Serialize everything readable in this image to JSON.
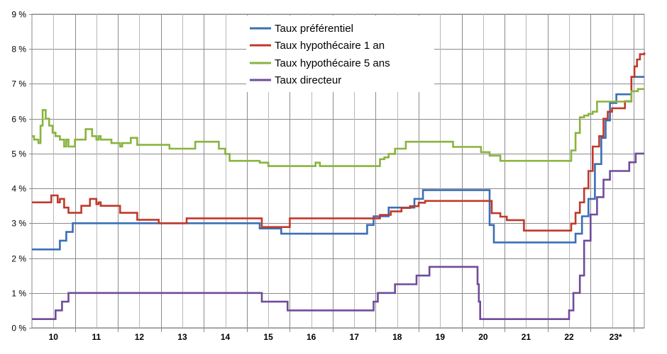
{
  "chart_data": {
    "type": "line",
    "title": "",
    "xlabel": "",
    "ylabel": "",
    "ylim": [
      0,
      9
    ],
    "y_ticks": [
      0,
      1,
      2,
      3,
      4,
      5,
      6,
      7,
      8,
      9
    ],
    "y_tick_labels": [
      "0 %",
      "1 %",
      "2 %",
      "3 %",
      "4 %",
      "5 %",
      "6 %",
      "7 %",
      "8 %",
      "9 %"
    ],
    "xlim": [
      2009.5,
      2023.75
    ],
    "x_tick_labels": [
      "10",
      "11",
      "12",
      "13",
      "14",
      "15",
      "16",
      "17",
      "18",
      "19",
      "20",
      "21",
      "22",
      "23*"
    ],
    "grid": true,
    "legend_position": "top-center",
    "series": [
      {
        "name": "Taux préférentiel",
        "color": "#3a6fb5",
        "steps": [
          [
            2009.5,
            2.25
          ],
          [
            2010.15,
            2.5
          ],
          [
            2010.3,
            2.75
          ],
          [
            2010.45,
            3.0
          ],
          [
            2014.8,
            2.85
          ],
          [
            2015.3,
            2.7
          ],
          [
            2017.3,
            2.95
          ],
          [
            2017.45,
            3.2
          ],
          [
            2017.7,
            3.2
          ],
          [
            2017.8,
            3.45
          ],
          [
            2018.4,
            3.7
          ],
          [
            2018.6,
            3.95
          ],
          [
            2019.8,
            3.95
          ],
          [
            2020.15,
            2.95
          ],
          [
            2020.25,
            2.45
          ],
          [
            2021.8,
            2.45
          ],
          [
            2022.15,
            2.7
          ],
          [
            2022.3,
            3.2
          ],
          [
            2022.45,
            3.7
          ],
          [
            2022.6,
            4.7
          ],
          [
            2022.75,
            5.45
          ],
          [
            2022.85,
            5.95
          ],
          [
            2022.95,
            6.45
          ],
          [
            2023.1,
            6.7
          ],
          [
            2023.45,
            7.2
          ],
          [
            2023.75,
            7.2
          ]
        ]
      },
      {
        "name": "Taux hypothécaire 1 an",
        "color": "#c0392b",
        "steps": [
          [
            2009.5,
            3.6
          ],
          [
            2009.85,
            3.6
          ],
          [
            2009.95,
            3.8
          ],
          [
            2010.1,
            3.6
          ],
          [
            2010.15,
            3.7
          ],
          [
            2010.25,
            3.45
          ],
          [
            2010.35,
            3.3
          ],
          [
            2010.55,
            3.3
          ],
          [
            2010.65,
            3.5
          ],
          [
            2010.85,
            3.7
          ],
          [
            2011.0,
            3.55
          ],
          [
            2011.05,
            3.6
          ],
          [
            2011.1,
            3.5
          ],
          [
            2011.5,
            3.5
          ],
          [
            2011.55,
            3.3
          ],
          [
            2011.8,
            3.3
          ],
          [
            2011.95,
            3.1
          ],
          [
            2012.35,
            3.1
          ],
          [
            2012.45,
            3.0
          ],
          [
            2012.95,
            3.0
          ],
          [
            2013.1,
            3.14
          ],
          [
            2014.75,
            3.14
          ],
          [
            2014.85,
            2.89
          ],
          [
            2015.35,
            2.89
          ],
          [
            2015.5,
            3.14
          ],
          [
            2017.5,
            3.14
          ],
          [
            2017.6,
            3.24
          ],
          [
            2017.85,
            3.34
          ],
          [
            2018.1,
            3.44
          ],
          [
            2018.3,
            3.49
          ],
          [
            2018.5,
            3.59
          ],
          [
            2018.65,
            3.64
          ],
          [
            2019.85,
            3.64
          ],
          [
            2020.2,
            3.29
          ],
          [
            2020.4,
            3.19
          ],
          [
            2020.55,
            3.09
          ],
          [
            2020.8,
            3.09
          ],
          [
            2020.95,
            2.79
          ],
          [
            2021.9,
            2.79
          ],
          [
            2022.05,
            2.99
          ],
          [
            2022.15,
            3.3
          ],
          [
            2022.25,
            3.6
          ],
          [
            2022.35,
            4.0
          ],
          [
            2022.45,
            4.5
          ],
          [
            2022.55,
            5.2
          ],
          [
            2022.7,
            5.5
          ],
          [
            2022.8,
            6.0
          ],
          [
            2022.9,
            6.2
          ],
          [
            2023.0,
            6.3
          ],
          [
            2023.2,
            6.3
          ],
          [
            2023.3,
            6.5
          ],
          [
            2023.45,
            7.2
          ],
          [
            2023.52,
            7.5
          ],
          [
            2023.58,
            7.7
          ],
          [
            2023.65,
            7.85
          ],
          [
            2023.75,
            7.9
          ]
        ]
      },
      {
        "name": "Taux hypothécaire 5 ans",
        "color": "#8ab33f",
        "steps": [
          [
            2009.5,
            5.5
          ],
          [
            2009.55,
            5.4
          ],
          [
            2009.65,
            5.3
          ],
          [
            2009.7,
            5.8
          ],
          [
            2009.75,
            6.25
          ],
          [
            2009.82,
            6.0
          ],
          [
            2009.9,
            5.8
          ],
          [
            2009.98,
            5.6
          ],
          [
            2010.05,
            5.5
          ],
          [
            2010.15,
            5.4
          ],
          [
            2010.25,
            5.2
          ],
          [
            2010.3,
            5.4
          ],
          [
            2010.35,
            5.2
          ],
          [
            2010.5,
            5.4
          ],
          [
            2010.65,
            5.4
          ],
          [
            2010.75,
            5.7
          ],
          [
            2010.9,
            5.5
          ],
          [
            2011.0,
            5.4
          ],
          [
            2011.05,
            5.5
          ],
          [
            2011.1,
            5.4
          ],
          [
            2011.3,
            5.4
          ],
          [
            2011.35,
            5.3
          ],
          [
            2011.5,
            5.3
          ],
          [
            2011.55,
            5.2
          ],
          [
            2011.6,
            5.3
          ],
          [
            2011.8,
            5.45
          ],
          [
            2011.95,
            5.25
          ],
          [
            2012.35,
            5.25
          ],
          [
            2012.6,
            5.25
          ],
          [
            2012.7,
            5.14
          ],
          [
            2013.2,
            5.14
          ],
          [
            2013.3,
            5.34
          ],
          [
            2013.7,
            5.34
          ],
          [
            2013.85,
            5.14
          ],
          [
            2014.0,
            4.99
          ],
          [
            2014.1,
            4.79
          ],
          [
            2014.7,
            4.79
          ],
          [
            2014.8,
            4.74
          ],
          [
            2015.0,
            4.64
          ],
          [
            2016.05,
            4.64
          ],
          [
            2016.1,
            4.74
          ],
          [
            2016.2,
            4.64
          ],
          [
            2017.5,
            4.64
          ],
          [
            2017.6,
            4.84
          ],
          [
            2017.7,
            4.89
          ],
          [
            2017.8,
            4.99
          ],
          [
            2017.95,
            5.14
          ],
          [
            2018.2,
            5.34
          ],
          [
            2019.2,
            5.34
          ],
          [
            2019.3,
            5.19
          ],
          [
            2019.85,
            5.19
          ],
          [
            2019.95,
            5.04
          ],
          [
            2020.15,
            4.94
          ],
          [
            2020.4,
            4.79
          ],
          [
            2021.95,
            4.79
          ],
          [
            2022.05,
            5.09
          ],
          [
            2022.15,
            5.59
          ],
          [
            2022.25,
            6.04
          ],
          [
            2022.35,
            6.09
          ],
          [
            2022.45,
            6.14
          ],
          [
            2022.55,
            6.2
          ],
          [
            2022.65,
            6.49
          ],
          [
            2023.0,
            6.49
          ],
          [
            2023.35,
            6.49
          ],
          [
            2023.45,
            6.79
          ],
          [
            2023.6,
            6.85
          ],
          [
            2023.75,
            6.85
          ]
        ]
      },
      {
        "name": "Taux directeur",
        "color": "#6f4c9b",
        "steps": [
          [
            2009.5,
            0.25
          ],
          [
            2009.95,
            0.25
          ],
          [
            2010.05,
            0.5
          ],
          [
            2010.2,
            0.75
          ],
          [
            2010.35,
            1.0
          ],
          [
            2014.8,
            1.0
          ],
          [
            2014.85,
            0.75
          ],
          [
            2015.35,
            0.75
          ],
          [
            2015.45,
            0.5
          ],
          [
            2017.3,
            0.5
          ],
          [
            2017.45,
            0.75
          ],
          [
            2017.55,
            1.0
          ],
          [
            2017.85,
            1.0
          ],
          [
            2017.95,
            1.25
          ],
          [
            2018.35,
            1.25
          ],
          [
            2018.45,
            1.5
          ],
          [
            2018.65,
            1.5
          ],
          [
            2018.75,
            1.75
          ],
          [
            2019.85,
            1.75
          ],
          [
            2019.87,
            1.25
          ],
          [
            2019.9,
            0.75
          ],
          [
            2019.93,
            0.25
          ],
          [
            2021.85,
            0.25
          ],
          [
            2022.0,
            0.5
          ],
          [
            2022.1,
            1.0
          ],
          [
            2022.25,
            1.5
          ],
          [
            2022.35,
            2.5
          ],
          [
            2022.5,
            3.25
          ],
          [
            2022.65,
            3.75
          ],
          [
            2022.8,
            4.25
          ],
          [
            2022.95,
            4.5
          ],
          [
            2023.3,
            4.5
          ],
          [
            2023.4,
            4.75
          ],
          [
            2023.55,
            5.0
          ],
          [
            2023.75,
            5.0
          ]
        ]
      }
    ]
  }
}
